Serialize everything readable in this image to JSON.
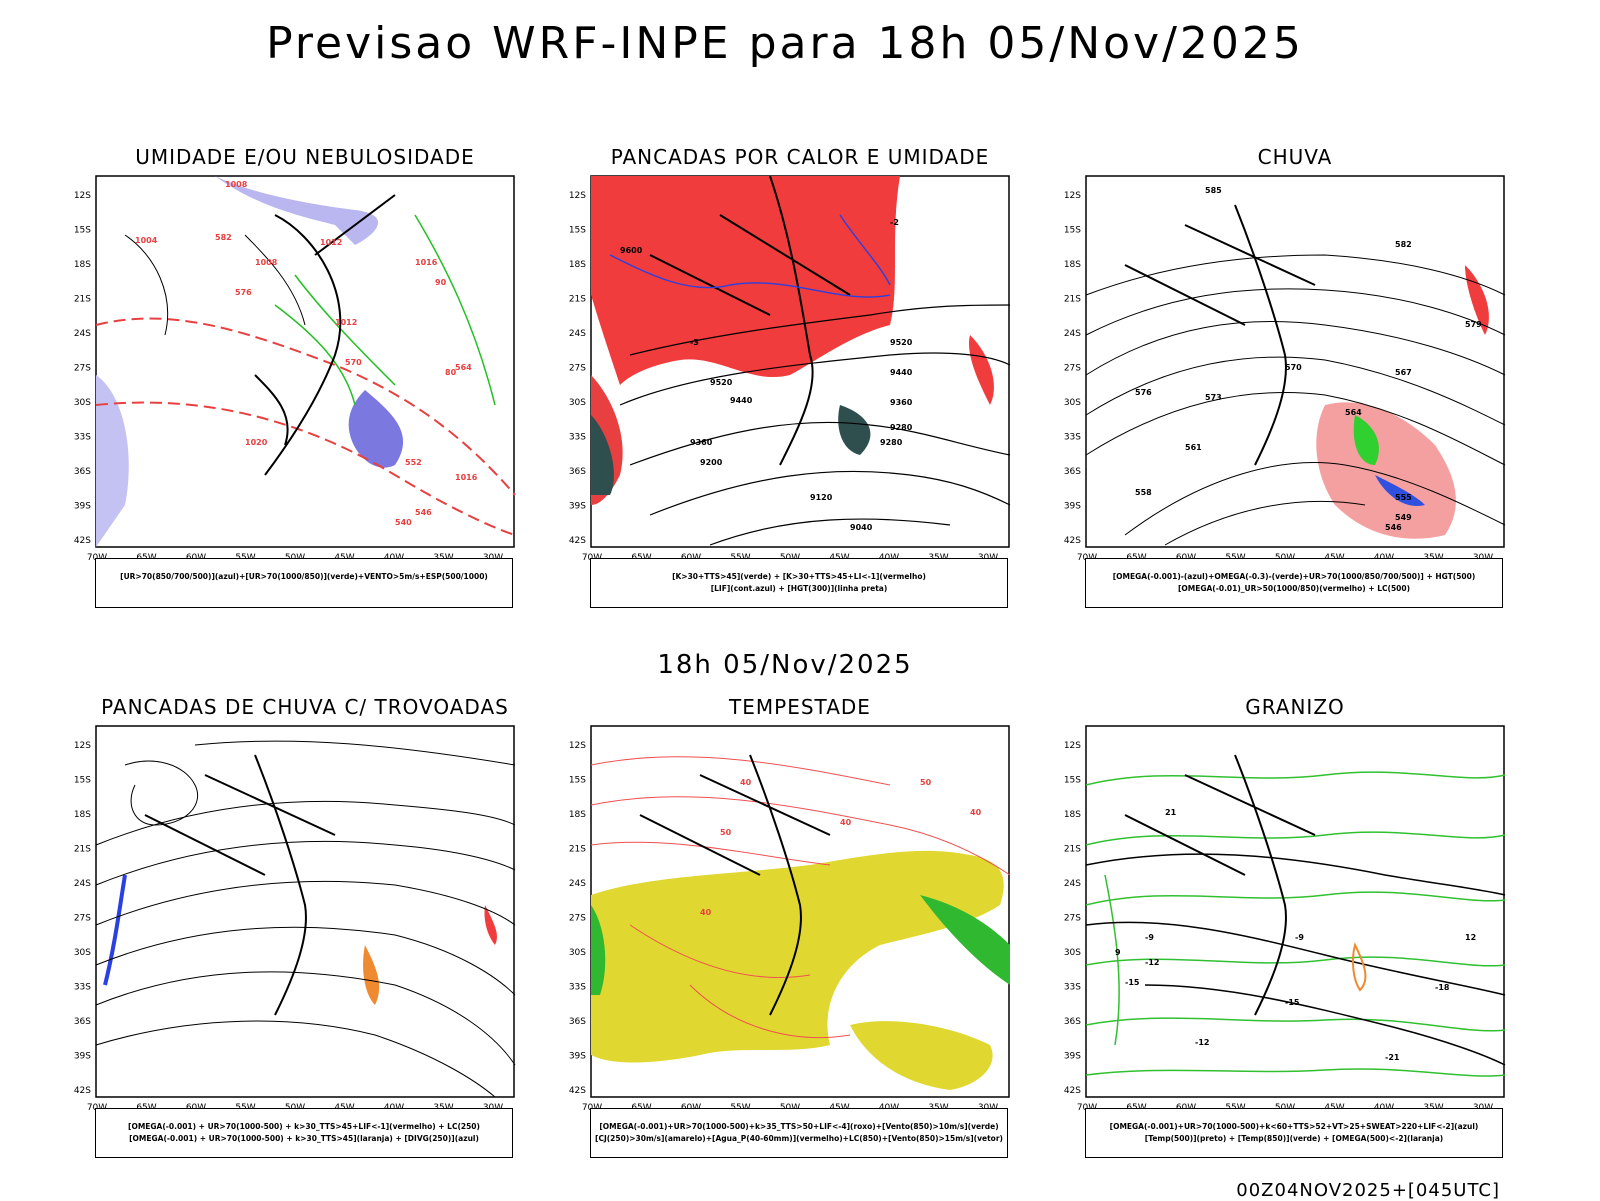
{
  "title": "Previsao WRF-INPE  para 18h 05/Nov/2025",
  "middle_title": "18h 05/Nov/2025",
  "footer": "00Z04NOV2025+[045UTC]",
  "axes": {
    "lat_labels": [
      "12S",
      "15S",
      "18S",
      "21S",
      "24S",
      "27S",
      "30S",
      "33S",
      "36S",
      "39S",
      "42S"
    ],
    "lon_labels": [
      "70W",
      "65W",
      "60W",
      "55W",
      "50W",
      "45W",
      "40W",
      "35W",
      "30W"
    ]
  },
  "panels": [
    {
      "title": "UMIDADE E/OU NEBULOSIDADE",
      "caption": [
        "[UR>70(850/700/500)](azul)+[UR>70(1000/850)](verde)+VENTO>5m/s+ESP(500/1000)"
      ],
      "labels": [
        "1008",
        "1004",
        "1008",
        "1012",
        "1012",
        "1016",
        "1016",
        "1020",
        "582",
        "576",
        "570",
        "564",
        "552",
        "546",
        "540",
        "90",
        "80"
      ]
    },
    {
      "title": "PANCADAS POR CALOR E UMIDADE",
      "caption": [
        "[K>30+TTS>45](verde) + [K>30+TTS>45+LI<-1](vermelho)",
        "[LIF](cont.azul) + [HGT(300)](linha preta)"
      ],
      "labels": [
        "9600",
        "9520",
        "9440",
        "9360",
        "9280",
        "9200",
        "9120",
        "9040",
        "9520",
        "9440",
        "9360",
        "9280",
        "-3",
        "-2"
      ]
    },
    {
      "title": "CHUVA",
      "caption": [
        "[OMEGA(-0.001)-(azul)+OMEGA(-0.3)-(verde)+UR>70(1000/850/700/500)] + HGT(500)",
        "[OMEGA(-0.01)_UR>50(1000/850)(vermelho) + LC(500)"
      ],
      "labels": [
        "585",
        "582",
        "579",
        "576",
        "573",
        "570",
        "567",
        "564",
        "561",
        "558",
        "555",
        "549",
        "546"
      ]
    },
    {
      "title": "PANCADAS DE CHUVA C/ TROVOADAS",
      "caption": [
        "[OMEGA(-0.001) + UR>70(1000-500) + k>30_TTS>45+LIF<-1](vermelho) + LC(250)",
        "[OMEGA(-0.001) + UR>70(1000-500) + k>30_TTS>45](laranja) + [DIVG(250)](azul)"
      ],
      "labels": []
    },
    {
      "title": "TEMPESTADE",
      "caption": [
        "[OMEGA(-0.001)+UR>70(1000-500)+k>35_TTS>50+LIF<-4](roxo)+[Vento(850)>10m/s](verde)",
        "[CJ(250)>30m/s](amarelo)+[Agua_P(40-60mm)](vermelho)+LC(850)+[Vento(850)>15m/s](vetor)"
      ],
      "labels": [
        "40",
        "50",
        "40",
        "40",
        "50",
        "40"
      ]
    },
    {
      "title": "GRANIZO",
      "caption": [
        "[OMEGA(-0.001)+UR>70(1000-500)+k<60+TTS>52+VT>25+SWEAT>220+LIF<-2](azul)",
        "[Temp(500)](preto) + [Temp(850)](verde) + [OMEGA(500)<-2](laranja)"
      ],
      "labels": [
        "-9",
        "-12",
        "-15",
        "-15",
        "-18",
        "-21",
        "-12",
        "-9",
        "21",
        "12",
        "9"
      ]
    }
  ]
}
